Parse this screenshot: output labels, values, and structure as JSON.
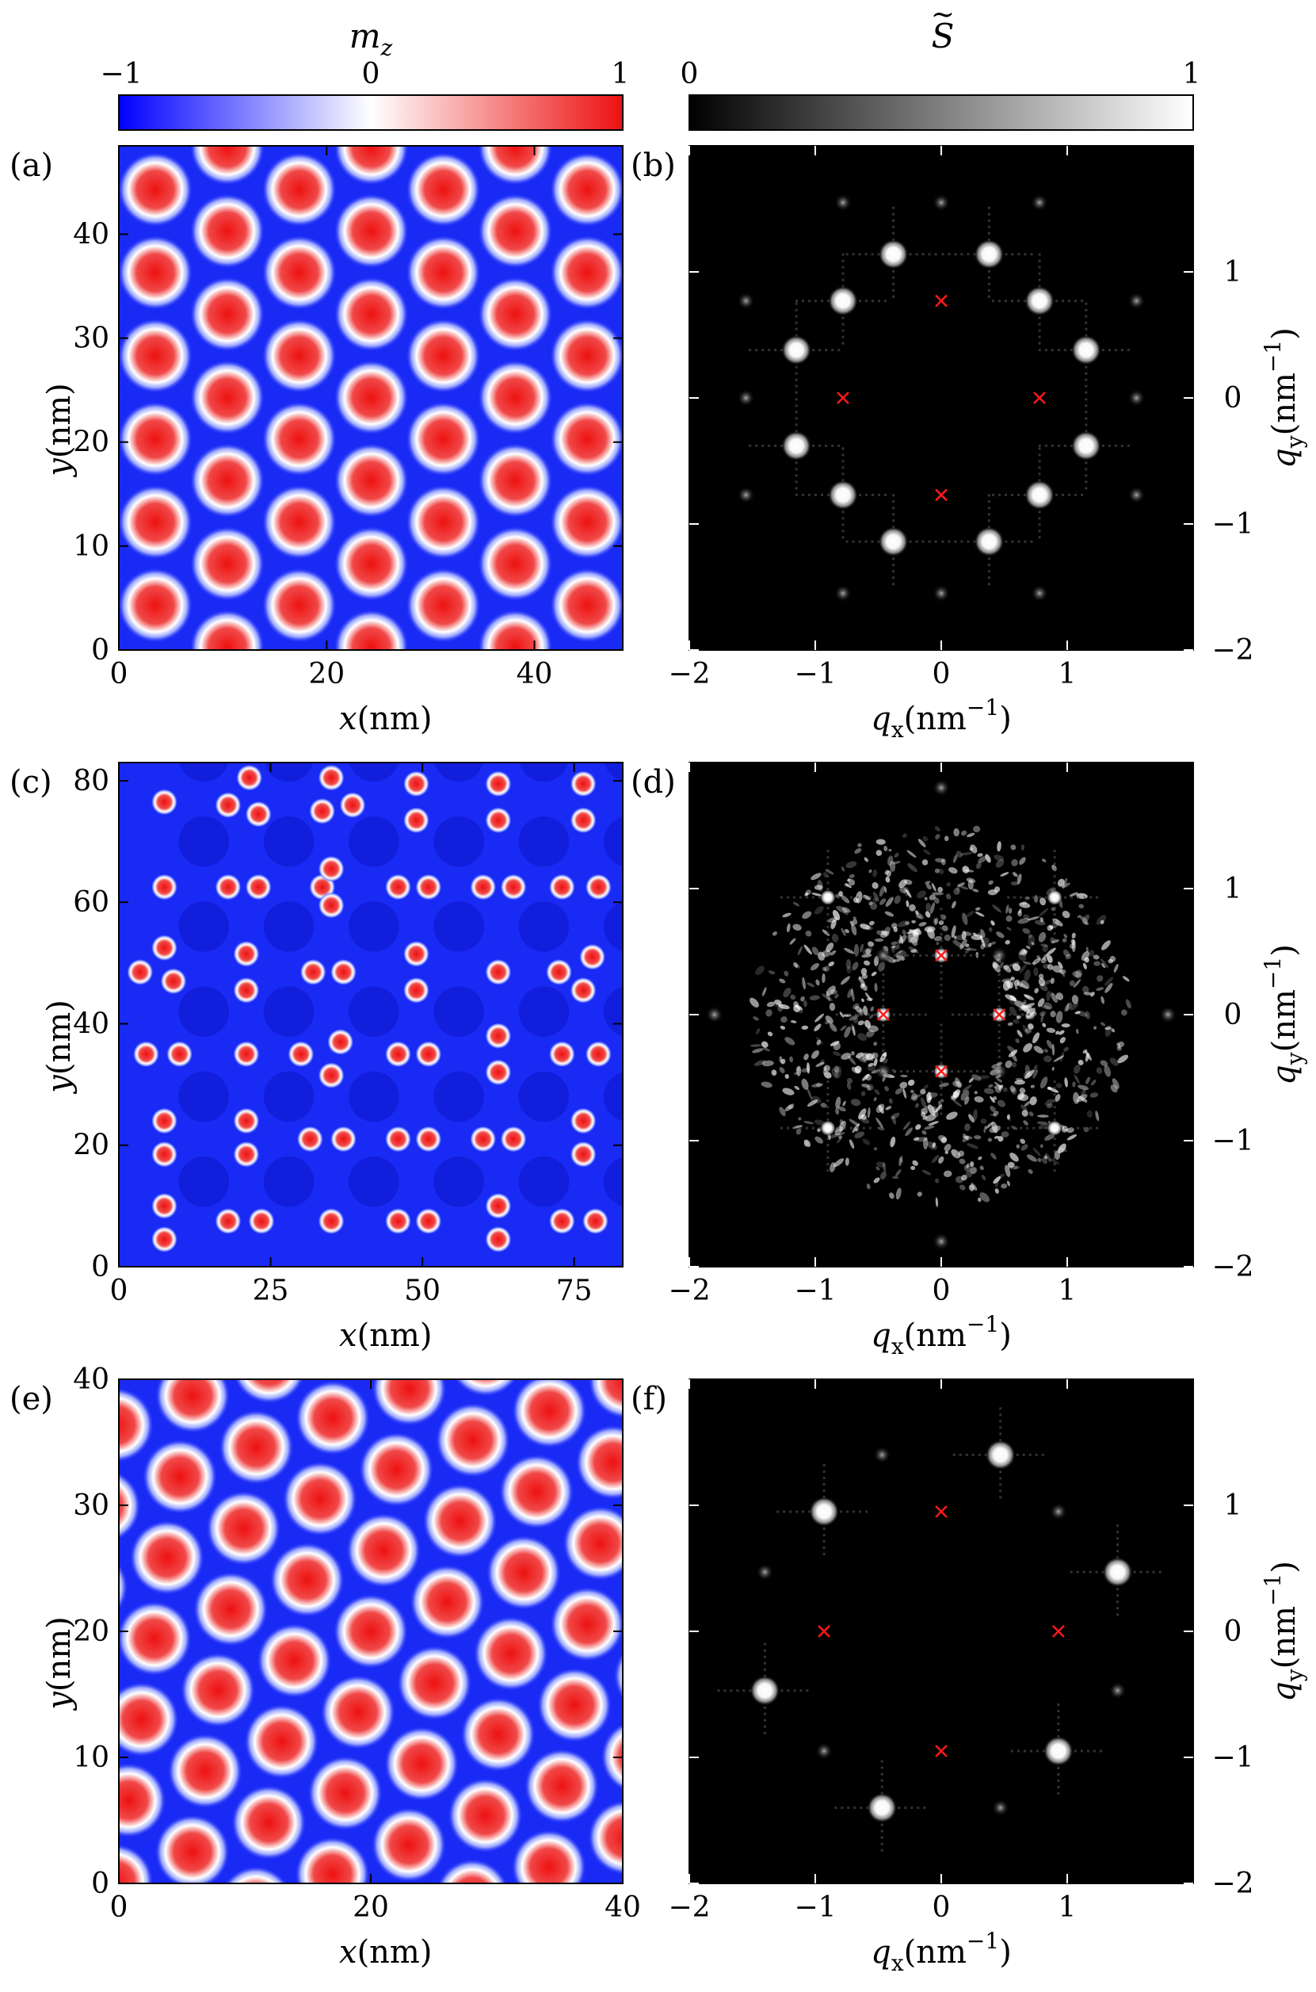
{
  "colorbars": [
    {
      "label_main": "m",
      "label_sub": "z",
      "ticks": [
        "−1",
        "0",
        "1"
      ],
      "range": [
        -1,
        1
      ],
      "colors": [
        "#0000ff",
        "#ffffff",
        "#ee1111"
      ]
    },
    {
      "label_main": "S",
      "label_accent": "~",
      "ticks": [
        "0",
        "1"
      ],
      "range": [
        0,
        1
      ],
      "colors": [
        "#000000",
        "#ffffff"
      ]
    }
  ],
  "axis_labels": {
    "x_real": {
      "var": "x",
      "unit": "(nm)"
    },
    "y_real": {
      "var": "y",
      "unit": "(nm)"
    },
    "qx": {
      "var": "q",
      "sub": "x",
      "unit": "(nm",
      "sup": "−1",
      "close": ")"
    },
    "qy": {
      "var": "q",
      "sub": "y",
      "unit": "(nm",
      "sup": "−1",
      "close": ")"
    }
  },
  "chart_data": [
    {
      "panel": "(a)",
      "type": "heatmap",
      "quantity": "m_z",
      "colormap": "blue-white-red",
      "xlim": [
        0,
        48.5
      ],
      "ylim": [
        0,
        48.5
      ],
      "xticks": [
        0,
        20,
        40
      ],
      "yticks": [
        0,
        10,
        20,
        30,
        40
      ],
      "lattice": {
        "a1": [
          8.0,
          0
        ],
        "a2": [
          4.0,
          6.93
        ],
        "center": [
          24.3,
          24.3
        ],
        "angle_deg": 90,
        "spot_radius": 2.3
      }
    },
    {
      "panel": "(b)",
      "type": "heatmap",
      "quantity": "structure factor S~",
      "colormap": "gray",
      "xlim": [
        -2,
        2
      ],
      "ylim": [
        -2,
        2
      ],
      "xticks": [
        -2,
        -1,
        0,
        1
      ],
      "yticks": [
        -2,
        -1,
        0,
        1
      ],
      "bright_peaks": [
        [
          -0.38,
          1.14
        ],
        [
          0.38,
          1.14
        ],
        [
          -0.78,
          0.77
        ],
        [
          0.78,
          0.77
        ],
        [
          -1.15,
          0.38
        ],
        [
          1.15,
          0.38
        ],
        [
          -1.15,
          -0.38
        ],
        [
          1.15,
          -0.38
        ],
        [
          -0.78,
          -0.77
        ],
        [
          0.78,
          -0.77
        ],
        [
          -0.38,
          -1.14
        ],
        [
          0.38,
          -1.14
        ]
      ],
      "faint_peaks": [
        [
          -1.55,
          0.77
        ],
        [
          1.55,
          0.77
        ],
        [
          -1.55,
          0
        ],
        [
          1.55,
          0
        ],
        [
          -1.55,
          -0.77
        ],
        [
          1.55,
          -0.77
        ],
        [
          0,
          1.55
        ],
        [
          0,
          -1.55
        ],
        [
          -0.78,
          1.55
        ],
        [
          0.78,
          1.55
        ],
        [
          -0.78,
          -1.55
        ],
        [
          0.78,
          -1.55
        ]
      ],
      "markers": [
        [
          0,
          0.77
        ],
        [
          -0.78,
          0
        ],
        [
          0.78,
          0
        ],
        [
          0,
          -0.77
        ]
      ]
    },
    {
      "panel": "(c)",
      "type": "heatmap",
      "quantity": "m_z",
      "colormap": "blue-white-red",
      "xlim": [
        0,
        83
      ],
      "ylim": [
        0,
        83
      ],
      "xticks": [
        0,
        25,
        50,
        75
      ],
      "yticks": [
        0,
        20,
        40,
        60,
        80
      ],
      "skyrmions": [
        [
          7.5,
          76.5
        ],
        [
          18,
          76
        ],
        [
          21.5,
          80.5
        ],
        [
          23,
          74.5
        ],
        [
          33.5,
          75
        ],
        [
          35,
          80.5
        ],
        [
          38.5,
          76
        ],
        [
          49,
          79.5
        ],
        [
          49,
          73.5
        ],
        [
          62.5,
          79.5
        ],
        [
          62.5,
          73.5
        ],
        [
          76.5,
          79.5
        ],
        [
          76.5,
          73.5
        ],
        [
          7.5,
          62.5
        ],
        [
          18,
          62.5
        ],
        [
          23,
          62.5
        ],
        [
          33.5,
          62.5
        ],
        [
          35,
          65.5
        ],
        [
          35,
          59.5
        ],
        [
          46,
          62.5
        ],
        [
          51,
          62.5
        ],
        [
          60,
          62.5
        ],
        [
          65,
          62.5
        ],
        [
          73,
          62.5
        ],
        [
          79,
          62.5
        ],
        [
          3.5,
          48.5
        ],
        [
          7.5,
          52.5
        ],
        [
          9,
          47
        ],
        [
          21,
          51.5
        ],
        [
          21,
          45.5
        ],
        [
          32,
          48.5
        ],
        [
          37,
          48.5
        ],
        [
          49,
          51.5
        ],
        [
          49,
          45.5
        ],
        [
          62.5,
          48.5
        ],
        [
          72.5,
          48.5
        ],
        [
          78,
          51
        ],
        [
          76.5,
          45.5
        ],
        [
          4.5,
          35
        ],
        [
          10,
          35
        ],
        [
          21,
          35
        ],
        [
          30,
          35
        ],
        [
          36.5,
          37
        ],
        [
          35,
          31.5
        ],
        [
          46,
          35
        ],
        [
          51,
          35
        ],
        [
          62.5,
          38
        ],
        [
          62.5,
          32
        ],
        [
          73,
          35
        ],
        [
          79,
          35
        ],
        [
          7.5,
          24
        ],
        [
          7.5,
          18.5
        ],
        [
          21,
          24
        ],
        [
          21,
          18.5
        ],
        [
          31.5,
          21
        ],
        [
          37,
          21
        ],
        [
          46,
          21
        ],
        [
          51,
          21
        ],
        [
          60,
          21
        ],
        [
          65,
          21
        ],
        [
          76.5,
          24
        ],
        [
          76.5,
          18.5
        ],
        [
          7.5,
          10
        ],
        [
          7.5,
          4.5
        ],
        [
          18,
          7.5
        ],
        [
          23.5,
          7.5
        ],
        [
          35,
          7.5
        ],
        [
          46,
          7.5
        ],
        [
          51,
          7.5
        ],
        [
          62.5,
          10
        ],
        [
          62.5,
          4.5
        ],
        [
          73,
          7.5
        ],
        [
          78.5,
          7.5
        ]
      ],
      "spot_radius": 1.4
    },
    {
      "panel": "(d)",
      "type": "heatmap",
      "quantity": "structure factor S~",
      "colormap": "gray",
      "xlim": [
        -2,
        2
      ],
      "ylim": [
        -2,
        2
      ],
      "xticks": [
        -2,
        -1,
        0,
        1
      ],
      "yticks": [
        -2,
        -1,
        0,
        1
      ],
      "bright_peaks": [
        [
          -0.9,
          0.93
        ],
        [
          0.9,
          0.93
        ],
        [
          -0.9,
          -0.9
        ],
        [
          0.9,
          -0.9
        ],
        [
          0,
          0.47
        ],
        [
          -0.46,
          0
        ],
        [
          0.46,
          0
        ],
        [
          0,
          -0.45
        ]
      ],
      "faint_peaks": [
        [
          -0.46,
          0.47
        ],
        [
          0.46,
          0.47
        ],
        [
          -0.46,
          -0.45
        ],
        [
          0.46,
          -0.45
        ],
        [
          0,
          1.8
        ],
        [
          0,
          -1.8
        ],
        [
          -1.8,
          0
        ],
        [
          1.8,
          0
        ]
      ],
      "speckle_ring": [
        0.55,
        1.5
      ],
      "markers": [
        [
          0,
          0.47
        ],
        [
          -0.46,
          0
        ],
        [
          0.46,
          0
        ],
        [
          0,
          -0.45
        ]
      ]
    },
    {
      "panel": "(e)",
      "type": "heatmap",
      "quantity": "m_z",
      "colormap": "blue-white-red",
      "xlim": [
        0,
        40
      ],
      "ylim": [
        0,
        40
      ],
      "xticks": [
        0,
        20,
        40
      ],
      "yticks": [
        0,
        10,
        20,
        30,
        40
      ],
      "lattice": {
        "a1": [
          6.5,
          0
        ],
        "a2": [
          3.25,
          5.63
        ],
        "center": [
          20,
          20
        ],
        "angle_deg": 21,
        "spot_radius": 1.9
      }
    },
    {
      "panel": "(f)",
      "type": "heatmap",
      "quantity": "structure factor S~",
      "colormap": "gray",
      "xlim": [
        -2,
        2
      ],
      "ylim": [
        -2,
        2
      ],
      "xticks": [
        -2,
        -1,
        0,
        1
      ],
      "yticks": [
        -2,
        -1,
        0,
        1
      ],
      "bright_peaks": [
        [
          0.47,
          1.4
        ],
        [
          -0.93,
          0.95
        ],
        [
          1.4,
          0.47
        ],
        [
          -1.4,
          -0.47
        ],
        [
          0.93,
          -0.95
        ],
        [
          -0.47,
          -1.4
        ]
      ],
      "faint_peaks": [
        [
          -0.47,
          1.4
        ],
        [
          0.93,
          0.95
        ],
        [
          -1.4,
          0.47
        ],
        [
          1.4,
          -0.47
        ],
        [
          -0.93,
          -0.95
        ],
        [
          0.47,
          -1.4
        ]
      ],
      "markers": [
        [
          0,
          0.95
        ],
        [
          -0.93,
          0
        ],
        [
          0.93,
          0
        ],
        [
          0,
          -0.95
        ]
      ]
    }
  ],
  "panel_labels": [
    "(a)",
    "(b)",
    "(c)",
    "(d)",
    "(e)",
    "(f)"
  ]
}
